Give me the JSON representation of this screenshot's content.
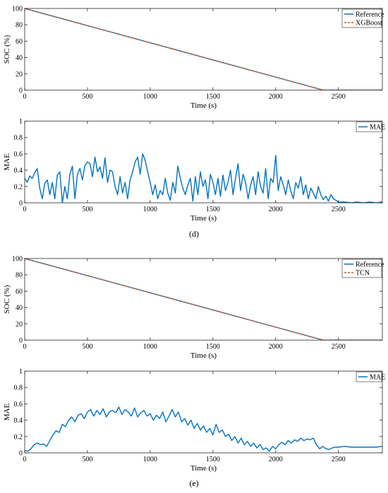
{
  "colors": {
    "reference": "#0072BD",
    "prediction": "#D95319",
    "mae": "#0072BD",
    "axis": "#262626"
  },
  "captions": [
    "(d)",
    "(e)"
  ],
  "chart_data": [
    {
      "type": "line",
      "panel": "d-top",
      "xlabel": "Time (s)",
      "ylabel": "SOC (%)",
      "xlim": [
        0,
        2850
      ],
      "ylim": [
        0,
        100
      ],
      "xticks": [
        0,
        500,
        1000,
        1500,
        2000,
        2500
      ],
      "yticks": [
        0,
        20,
        40,
        60,
        80,
        100
      ],
      "legend": "top-right",
      "grid": false,
      "series": [
        {
          "name": "Reference",
          "style": "solid",
          "color": "#0072BD",
          "x": [
            0,
            2380,
            2850
          ],
          "y": [
            100,
            0,
            0
          ]
        },
        {
          "name": "XGBoost",
          "style": "dashed",
          "color": "#D95319",
          "x": [
            0,
            2380,
            2850
          ],
          "y": [
            100,
            0,
            0
          ]
        }
      ]
    },
    {
      "type": "line",
      "panel": "d-bottom",
      "xlabel": "Time (s)",
      "ylabel": "MAE",
      "xlim": [
        0,
        2850
      ],
      "ylim": [
        0,
        1
      ],
      "xticks": [
        0,
        500,
        1000,
        1500,
        2000,
        2500
      ],
      "yticks": [
        0,
        0.2,
        0.4,
        0.6,
        0.8,
        1
      ],
      "legend": "top-right",
      "grid": false,
      "series": [
        {
          "name": "MAE",
          "style": "solid",
          "color": "#0072BD",
          "x": [
            0,
            20,
            40,
            60,
            80,
            100,
            120,
            140,
            160,
            180,
            200,
            220,
            240,
            260,
            280,
            300,
            320,
            340,
            360,
            380,
            400,
            420,
            440,
            460,
            480,
            500,
            520,
            540,
            560,
            580,
            600,
            620,
            640,
            660,
            680,
            700,
            720,
            740,
            760,
            780,
            800,
            820,
            840,
            860,
            880,
            900,
            920,
            940,
            960,
            980,
            1000,
            1020,
            1040,
            1060,
            1080,
            1100,
            1120,
            1140,
            1160,
            1180,
            1200,
            1220,
            1240,
            1260,
            1280,
            1300,
            1320,
            1340,
            1360,
            1380,
            1400,
            1420,
            1440,
            1460,
            1480,
            1500,
            1520,
            1540,
            1560,
            1580,
            1600,
            1620,
            1640,
            1660,
            1680,
            1700,
            1720,
            1740,
            1760,
            1780,
            1800,
            1820,
            1840,
            1860,
            1880,
            1900,
            1920,
            1940,
            1960,
            1980,
            2000,
            2020,
            2040,
            2060,
            2080,
            2100,
            2120,
            2140,
            2160,
            2180,
            2200,
            2220,
            2240,
            2260,
            2280,
            2300,
            2320,
            2340,
            2360,
            2380,
            2400,
            2420,
            2440,
            2460,
            2480,
            2500,
            2550,
            2600,
            2650,
            2700,
            2750,
            2800,
            2850
          ],
          "y": [
            0.3,
            0.25,
            0.33,
            0.3,
            0.37,
            0.42,
            0.18,
            0.05,
            0.24,
            0.28,
            0.1,
            0.25,
            0.05,
            0.34,
            0.38,
            0.0,
            0.2,
            0.05,
            0.35,
            0.45,
            0.05,
            0.35,
            0.42,
            0.28,
            0.46,
            0.5,
            0.48,
            0.32,
            0.56,
            0.38,
            0.44,
            0.3,
            0.55,
            0.25,
            0.4,
            0.38,
            0.2,
            0.1,
            0.32,
            0.12,
            0.25,
            0.05,
            0.28,
            0.38,
            0.5,
            0.56,
            0.35,
            0.6,
            0.52,
            0.38,
            0.25,
            0.1,
            0.22,
            0.05,
            0.15,
            0.1,
            0.3,
            0.12,
            0.03,
            0.25,
            0.12,
            0.45,
            0.3,
            0.18,
            0.1,
            0.22,
            0.3,
            0.02,
            0.32,
            0.1,
            0.38,
            0.2,
            0.28,
            0.05,
            0.35,
            0.25,
            0.1,
            0.3,
            0.08,
            0.34,
            0.15,
            0.25,
            0.4,
            0.1,
            0.3,
            0.48,
            0.15,
            0.35,
            0.25,
            0.05,
            0.22,
            0.32,
            0.1,
            0.38,
            0.2,
            0.12,
            0.42,
            0.05,
            0.3,
            0.25,
            0.58,
            0.15,
            0.32,
            0.22,
            0.1,
            0.28,
            0.15,
            0.05,
            0.25,
            0.18,
            0.32,
            0.1,
            0.22,
            0.05,
            0.18,
            0.12,
            0.05,
            0.2,
            0.1,
            0.04,
            0.08,
            0.02,
            0.1,
            0.05,
            0.03,
            0.01,
            0.01,
            0.0,
            0.01,
            0.0,
            0.01,
            0.0,
            0.01
          ]
        }
      ]
    },
    {
      "type": "line",
      "panel": "e-top",
      "xlabel": "Time (s)",
      "ylabel": "SOC (%)",
      "xlim": [
        0,
        2850
      ],
      "ylim": [
        0,
        100
      ],
      "xticks": [
        0,
        500,
        1000,
        1500,
        2000,
        2500
      ],
      "yticks": [
        0,
        20,
        40,
        60,
        80,
        100
      ],
      "legend": "top-right",
      "grid": false,
      "series": [
        {
          "name": "Reference",
          "style": "solid",
          "color": "#0072BD",
          "x": [
            0,
            2380,
            2850
          ],
          "y": [
            100,
            0,
            0
          ]
        },
        {
          "name": "TCN",
          "style": "dashed",
          "color": "#D95319",
          "x": [
            0,
            2380,
            2850
          ],
          "y": [
            100,
            0,
            0
          ]
        }
      ]
    },
    {
      "type": "line",
      "panel": "e-bottom",
      "xlabel": "Time (s)",
      "ylabel": "MAE",
      "xlim": [
        0,
        2850
      ],
      "ylim": [
        0,
        1
      ],
      "xticks": [
        0,
        500,
        1000,
        1500,
        2000,
        2500
      ],
      "yticks": [
        0,
        0.2,
        0.4,
        0.6,
        0.8,
        1
      ],
      "legend": "top-right",
      "grid": false,
      "series": [
        {
          "name": "MAE",
          "style": "solid",
          "color": "#0072BD",
          "x": [
            0,
            25,
            50,
            75,
            100,
            125,
            150,
            175,
            200,
            225,
            250,
            275,
            300,
            325,
            350,
            375,
            400,
            425,
            450,
            475,
            500,
            525,
            550,
            575,
            600,
            625,
            650,
            675,
            700,
            725,
            750,
            775,
            800,
            825,
            850,
            875,
            900,
            925,
            950,
            975,
            1000,
            1025,
            1050,
            1075,
            1100,
            1125,
            1150,
            1175,
            1200,
            1225,
            1250,
            1275,
            1300,
            1325,
            1350,
            1375,
            1400,
            1425,
            1450,
            1475,
            1500,
            1525,
            1550,
            1575,
            1600,
            1625,
            1650,
            1675,
            1700,
            1725,
            1750,
            1775,
            1800,
            1825,
            1850,
            1875,
            1900,
            1925,
            1950,
            1975,
            2000,
            2025,
            2050,
            2075,
            2100,
            2125,
            2150,
            2175,
            2200,
            2225,
            2250,
            2275,
            2300,
            2325,
            2350,
            2375,
            2400,
            2425,
            2450,
            2475,
            2500,
            2550,
            2600,
            2650,
            2700,
            2750,
            2800,
            2850
          ],
          "y": [
            0.03,
            0.02,
            0.05,
            0.1,
            0.12,
            0.1,
            0.11,
            0.08,
            0.15,
            0.22,
            0.27,
            0.25,
            0.35,
            0.32,
            0.4,
            0.44,
            0.38,
            0.46,
            0.48,
            0.42,
            0.5,
            0.53,
            0.45,
            0.52,
            0.47,
            0.54,
            0.44,
            0.5,
            0.52,
            0.49,
            0.56,
            0.47,
            0.53,
            0.5,
            0.45,
            0.55,
            0.44,
            0.49,
            0.52,
            0.45,
            0.48,
            0.4,
            0.46,
            0.42,
            0.5,
            0.38,
            0.45,
            0.53,
            0.44,
            0.5,
            0.38,
            0.42,
            0.34,
            0.4,
            0.3,
            0.36,
            0.28,
            0.33,
            0.25,
            0.3,
            0.22,
            0.35,
            0.25,
            0.28,
            0.2,
            0.23,
            0.15,
            0.2,
            0.12,
            0.18,
            0.1,
            0.14,
            0.08,
            0.12,
            0.06,
            0.1,
            0.04,
            0.06,
            0.02,
            0.08,
            0.05,
            0.1,
            0.13,
            0.1,
            0.15,
            0.12,
            0.16,
            0.14,
            0.18,
            0.15,
            0.17,
            0.16,
            0.18,
            0.1,
            0.05,
            0.08,
            0.05,
            0.04,
            0.06,
            0.07,
            0.07,
            0.08,
            0.07,
            0.07,
            0.07,
            0.07,
            0.07,
            0.08
          ]
        }
      ]
    }
  ]
}
